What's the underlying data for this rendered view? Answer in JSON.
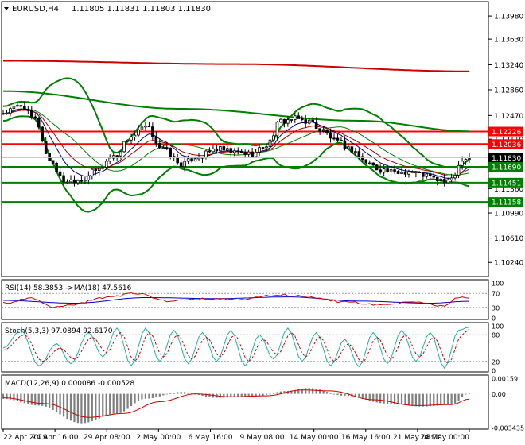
{
  "header": {
    "symbol": "EURUSD,H4",
    "ohlc": "1.11805 1.11831 1.11803 1.11830",
    "menu_icon": "triangle-down-icon"
  },
  "main_price_axis": {
    "ticks": [
      "1.13980",
      "1.13630",
      "1.13240",
      "1.12860",
      "1.12470",
      "1.12110",
      "1.11360",
      "1.10990",
      "1.10610",
      "1.10240"
    ],
    "ylim": [
      1.1005,
      1.1415
    ]
  },
  "level_labels": {
    "current": "1.11830",
    "r1": "1.12226",
    "r2": "1.12036",
    "s1": "1.11690",
    "s2": "1.11451",
    "s3": "1.11158"
  },
  "x_axis": {
    "labels": [
      "22 Apr 2019",
      "24 Apr 16:00",
      "29 Apr 08:00",
      "2 May 00:00",
      "6 May 16:00",
      "9 May 08:00",
      "14 May 00:00",
      "16 May 16:00",
      "21 May 08:00",
      "24 May 00:00"
    ]
  },
  "rsi": {
    "title": "RSI(14) 58.3853  ->MA(18) 47.5616",
    "ticks": [
      "100",
      "70",
      "30",
      "0"
    ]
  },
  "stoch": {
    "title": "Stoch(5,3,3) 97.0894 92.6170",
    "ticks": [
      "100",
      "80",
      "20",
      "0"
    ]
  },
  "macd": {
    "title": "MACD(12,26,9) 0.000086 -0.000528",
    "ticks": [
      "0.00159",
      "0.00",
      "-0.003435"
    ]
  },
  "colors": {
    "background": "#ffffff",
    "axis": "#000000",
    "candle": "#000000",
    "bollinger": "#008000",
    "slow_ma": "#cc0000",
    "fast_ma1": "#000080",
    "fast_ma2": "#b00000",
    "resistance": "#ff0000",
    "support": "#008000",
    "rsi_line": "#cc0000",
    "rsi_ma": "#0000cc",
    "stoch_main": "#20b2aa",
    "stoch_signal": "#cc0000",
    "macd_hist": "#808080",
    "macd_signal": "#cc0000"
  },
  "chart_data": [
    {
      "type": "candlestick",
      "title": "EURUSD,H4",
      "ylim": [
        1.1005,
        1.1415
      ],
      "anchors": [
        {
          "t": 0,
          "y": 1.1251
        },
        {
          "t": 5,
          "y": 1.1262
        },
        {
          "t": 9,
          "y": 1.124
        },
        {
          "t": 13,
          "y": 1.118
        },
        {
          "t": 17,
          "y": 1.1148
        },
        {
          "t": 22,
          "y": 1.115
        },
        {
          "t": 26,
          "y": 1.1163
        },
        {
          "t": 31,
          "y": 1.1185
        },
        {
          "t": 36,
          "y": 1.1215
        },
        {
          "t": 40,
          "y": 1.1229
        },
        {
          "t": 45,
          "y": 1.1196
        },
        {
          "t": 50,
          "y": 1.1173
        },
        {
          "t": 55,
          "y": 1.1185
        },
        {
          "t": 60,
          "y": 1.1196
        },
        {
          "t": 65,
          "y": 1.1191
        },
        {
          "t": 70,
          "y": 1.1189
        },
        {
          "t": 74,
          "y": 1.1202
        },
        {
          "t": 78,
          "y": 1.1238
        },
        {
          "t": 82,
          "y": 1.1242
        },
        {
          "t": 86,
          "y": 1.1238
        },
        {
          "t": 90,
          "y": 1.1222
        },
        {
          "t": 94,
          "y": 1.1206
        },
        {
          "t": 98,
          "y": 1.1195
        },
        {
          "t": 102,
          "y": 1.1176
        },
        {
          "t": 106,
          "y": 1.1165
        },
        {
          "t": 110,
          "y": 1.116
        },
        {
          "t": 114,
          "y": 1.1162
        },
        {
          "t": 118,
          "y": 1.1157
        },
        {
          "t": 122,
          "y": 1.115
        },
        {
          "t": 125,
          "y": 1.1145
        },
        {
          "t": 127,
          "y": 1.116
        },
        {
          "t": 129,
          "y": 1.1182
        },
        {
          "t": 131,
          "y": 1.1183
        }
      ],
      "slow_ma": [
        {
          "t": 0,
          "y": 1.133
        },
        {
          "t": 65,
          "y": 1.1325
        },
        {
          "t": 131,
          "y": 1.1314
        }
      ],
      "mid_ma": [
        {
          "t": 0,
          "y": 1.1284
        },
        {
          "t": 50,
          "y": 1.1257
        },
        {
          "t": 100,
          "y": 1.1239
        },
        {
          "t": 131,
          "y": 1.1223
        }
      ],
      "levels": [
        1.12226,
        1.12036,
        1.1169,
        1.11451,
        1.11158
      ],
      "current_price": 1.1183
    },
    {
      "type": "line",
      "title": "RSI(14) 58.3853  ->MA(18) 47.5616",
      "ylim": [
        0,
        100
      ],
      "series": [
        {
          "values": [
            {
              "t": 0,
              "y": 42
            },
            {
              "t": 8,
              "y": 55
            },
            {
              "t": 14,
              "y": 30
            },
            {
              "t": 20,
              "y": 38
            },
            {
              "t": 28,
              "y": 58
            },
            {
              "t": 38,
              "y": 70
            },
            {
              "t": 46,
              "y": 48
            },
            {
              "t": 56,
              "y": 55
            },
            {
              "t": 66,
              "y": 52
            },
            {
              "t": 78,
              "y": 66
            },
            {
              "t": 86,
              "y": 60
            },
            {
              "t": 96,
              "y": 45
            },
            {
              "t": 106,
              "y": 38
            },
            {
              "t": 116,
              "y": 44
            },
            {
              "t": 124,
              "y": 33
            },
            {
              "t": 128,
              "y": 60
            },
            {
              "t": 131,
              "y": 58.4
            }
          ]
        },
        {
          "values": [
            {
              "t": 0,
              "y": 50
            },
            {
              "t": 20,
              "y": 42
            },
            {
              "t": 40,
              "y": 58
            },
            {
              "t": 60,
              "y": 55
            },
            {
              "t": 80,
              "y": 60
            },
            {
              "t": 100,
              "y": 48
            },
            {
              "t": 120,
              "y": 42
            },
            {
              "t": 131,
              "y": 47.6
            }
          ]
        }
      ]
    },
    {
      "type": "line",
      "title": "Stoch(5,3,3) 97.0894 92.6170",
      "ylim": [
        0,
        100
      ],
      "series": [
        {
          "values": [
            {
              "t": 0,
              "y": 50
            },
            {
              "t": 5,
              "y": 90
            },
            {
              "t": 10,
              "y": 10
            },
            {
              "t": 15,
              "y": 60
            },
            {
              "t": 19,
              "y": 15
            },
            {
              "t": 24,
              "y": 85
            },
            {
              "t": 28,
              "y": 30
            },
            {
              "t": 32,
              "y": 95
            },
            {
              "t": 36,
              "y": 10
            },
            {
              "t": 40,
              "y": 95
            },
            {
              "t": 44,
              "y": 20
            },
            {
              "t": 48,
              "y": 90
            },
            {
              "t": 52,
              "y": 15
            },
            {
              "t": 56,
              "y": 85
            },
            {
              "t": 60,
              "y": 20
            },
            {
              "t": 64,
              "y": 90
            },
            {
              "t": 68,
              "y": 10
            },
            {
              "t": 72,
              "y": 80
            },
            {
              "t": 76,
              "y": 25
            },
            {
              "t": 80,
              "y": 95
            },
            {
              "t": 84,
              "y": 20
            },
            {
              "t": 88,
              "y": 85
            },
            {
              "t": 92,
              "y": 10
            },
            {
              "t": 96,
              "y": 70
            },
            {
              "t": 100,
              "y": 8
            },
            {
              "t": 104,
              "y": 85
            },
            {
              "t": 108,
              "y": 15
            },
            {
              "t": 112,
              "y": 90
            },
            {
              "t": 116,
              "y": 20
            },
            {
              "t": 120,
              "y": 85
            },
            {
              "t": 124,
              "y": 5
            },
            {
              "t": 128,
              "y": 90
            },
            {
              "t": 131,
              "y": 97.1
            }
          ]
        },
        {
          "values": [
            {
              "t": 0,
              "y": 45
            },
            {
              "t": 6,
              "y": 80
            },
            {
              "t": 11,
              "y": 20
            },
            {
              "t": 16,
              "y": 50
            },
            {
              "t": 20,
              "y": 25
            },
            {
              "t": 25,
              "y": 75
            },
            {
              "t": 29,
              "y": 40
            },
            {
              "t": 33,
              "y": 85
            },
            {
              "t": 37,
              "y": 20
            },
            {
              "t": 41,
              "y": 85
            },
            {
              "t": 45,
              "y": 30
            },
            {
              "t": 49,
              "y": 80
            },
            {
              "t": 53,
              "y": 25
            },
            {
              "t": 57,
              "y": 75
            },
            {
              "t": 61,
              "y": 30
            },
            {
              "t": 65,
              "y": 80
            },
            {
              "t": 69,
              "y": 20
            },
            {
              "t": 73,
              "y": 70
            },
            {
              "t": 77,
              "y": 35
            },
            {
              "t": 81,
              "y": 85
            },
            {
              "t": 85,
              "y": 30
            },
            {
              "t": 89,
              "y": 75
            },
            {
              "t": 93,
              "y": 20
            },
            {
              "t": 97,
              "y": 60
            },
            {
              "t": 101,
              "y": 18
            },
            {
              "t": 105,
              "y": 75
            },
            {
              "t": 109,
              "y": 25
            },
            {
              "t": 113,
              "y": 80
            },
            {
              "t": 117,
              "y": 30
            },
            {
              "t": 121,
              "y": 75
            },
            {
              "t": 125,
              "y": 15
            },
            {
              "t": 129,
              "y": 80
            },
            {
              "t": 131,
              "y": 92.6
            }
          ]
        }
      ]
    },
    {
      "type": "bar",
      "title": "MACD(12,26,9) 0.000086 -0.000528",
      "ylim": [
        -0.003435,
        0.00159
      ],
      "main": [
        {
          "t": 0,
          "y": -0.0005
        },
        {
          "t": 10,
          "y": -0.0012
        },
        {
          "t": 22,
          "y": -0.003
        },
        {
          "t": 32,
          "y": -0.002
        },
        {
          "t": 40,
          "y": -0.0005
        },
        {
          "t": 50,
          "y": 0.0002
        },
        {
          "t": 60,
          "y": -0.0004
        },
        {
          "t": 70,
          "y": -0.0003
        },
        {
          "t": 80,
          "y": 0.0003
        },
        {
          "t": 86,
          "y": 0.0006
        },
        {
          "t": 96,
          "y": -0.0002
        },
        {
          "t": 108,
          "y": -0.001
        },
        {
          "t": 118,
          "y": -0.0013
        },
        {
          "t": 126,
          "y": -0.0011
        },
        {
          "t": 131,
          "y": 8.6e-05
        }
      ],
      "signal": [
        {
          "t": 0,
          "y": -0.0004
        },
        {
          "t": 12,
          "y": -0.001
        },
        {
          "t": 24,
          "y": -0.0024
        },
        {
          "t": 34,
          "y": -0.002
        },
        {
          "t": 44,
          "y": -0.0008
        },
        {
          "t": 54,
          "y": 0.0
        },
        {
          "t": 64,
          "y": -0.0003
        },
        {
          "t": 74,
          "y": -0.0002
        },
        {
          "t": 84,
          "y": 0.0004
        },
        {
          "t": 92,
          "y": 0.0003
        },
        {
          "t": 104,
          "y": -0.0006
        },
        {
          "t": 116,
          "y": -0.0012
        },
        {
          "t": 126,
          "y": -0.0011
        },
        {
          "t": 131,
          "y": -0.000528
        }
      ]
    }
  ]
}
